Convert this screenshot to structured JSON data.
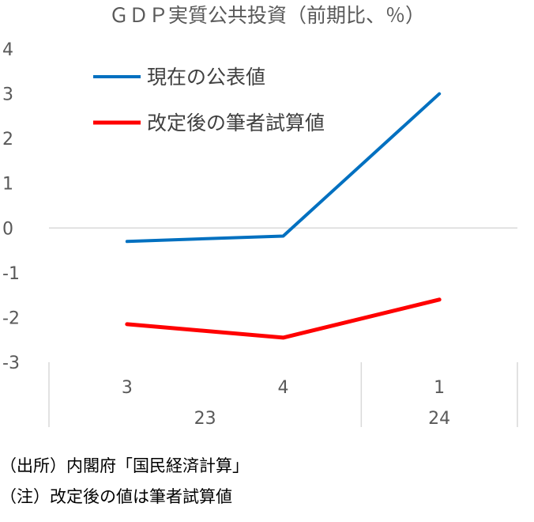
{
  "chart_data": {
    "type": "line",
    "title": "ＧＤＰ実質公共投資（前期比、％）",
    "xlabel": "",
    "ylabel": "",
    "ylim": [
      -3,
      4
    ],
    "yticks": [
      "4",
      "3",
      "2",
      "1",
      "0",
      "-1",
      "-2",
      "-3"
    ],
    "categories": [
      "3",
      "4",
      "1"
    ],
    "year_groups": [
      {
        "label": "23",
        "span": 2
      },
      {
        "label": "24",
        "span": 1
      }
    ],
    "grid": false,
    "legend_position": "top-left",
    "series": [
      {
        "name": "現在の公表値",
        "color": "#0070C0",
        "values": [
          -0.3,
          -0.18,
          3.0
        ]
      },
      {
        "name": "改定後の筆者試算値",
        "color": "#FF0000",
        "values": [
          -2.15,
          -2.45,
          -1.6
        ]
      }
    ]
  },
  "notes": {
    "source": "（出所）内閣府「国民経済計算」",
    "note": "（注）改定後の値は筆者試算値"
  }
}
